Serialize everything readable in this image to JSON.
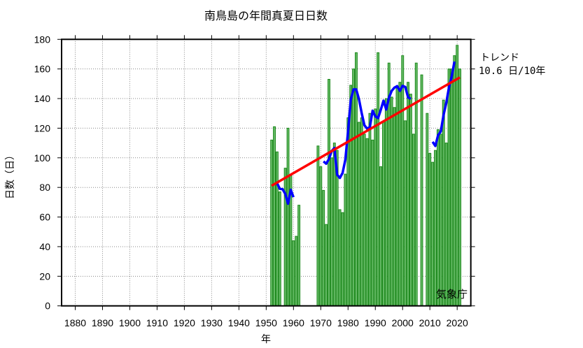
{
  "chart_data": {
    "type": "bar",
    "title": "南鳥島の年間真夏日日数",
    "xlabel": "年",
    "ylabel": "日数（日）",
    "xlim": [
      1875,
      2025
    ],
    "ylim": [
      0,
      180
    ],
    "xticks": [
      1880,
      1890,
      1900,
      1910,
      1920,
      1930,
      1940,
      1950,
      1960,
      1970,
      1980,
      1990,
      2000,
      2010,
      2020
    ],
    "yticks": [
      0,
      20,
      40,
      60,
      80,
      100,
      120,
      140,
      160,
      180
    ],
    "grid": true,
    "years": [
      1952,
      1953,
      1954,
      1955,
      1956,
      1957,
      1958,
      1959,
      1960,
      1961,
      1962,
      1963,
      1964,
      1965,
      1966,
      1967,
      1968,
      1969,
      1970,
      1971,
      1972,
      1973,
      1974,
      1975,
      1976,
      1977,
      1978,
      1979,
      1980,
      1981,
      1982,
      1983,
      1984,
      1985,
      1986,
      1987,
      1988,
      1989,
      1990,
      1991,
      1992,
      1993,
      1994,
      1995,
      1996,
      1997,
      1998,
      1999,
      2000,
      2001,
      2002,
      2003,
      2004,
      2005,
      2006,
      2007,
      2008,
      2009,
      2010,
      2011,
      2012,
      2013,
      2014,
      2015,
      2016,
      2017,
      2018,
      2019,
      2020,
      2021
    ],
    "values": [
      112,
      121,
      104,
      77,
      0,
      93,
      120,
      88,
      44,
      47,
      68,
      null,
      null,
      null,
      null,
      null,
      null,
      108,
      94,
      78,
      55,
      153,
      100,
      110,
      105,
      65,
      63,
      89,
      127,
      149,
      160,
      171,
      124,
      127,
      116,
      113,
      130,
      112,
      133,
      171,
      94,
      124,
      140,
      164,
      141,
      134,
      147,
      151,
      169,
      125,
      151,
      143,
      116,
      164,
      null,
      156,
      null,
      130,
      103,
      97,
      105,
      119,
      116,
      139,
      110,
      160,
      160,
      169,
      176,
      160
    ],
    "running_mean_window": 5,
    "trend": {
      "label": "トレンド",
      "value_text": "10.6 日/10年",
      "slope_per_decade": 10.6
    },
    "colors": {
      "bar_fill": "#66bb66",
      "bar_stroke": "#1e8a1e",
      "running_mean": "#0000ff",
      "trend": "#ff0000",
      "grid": "#888888"
    },
    "credit": "気象庁"
  }
}
